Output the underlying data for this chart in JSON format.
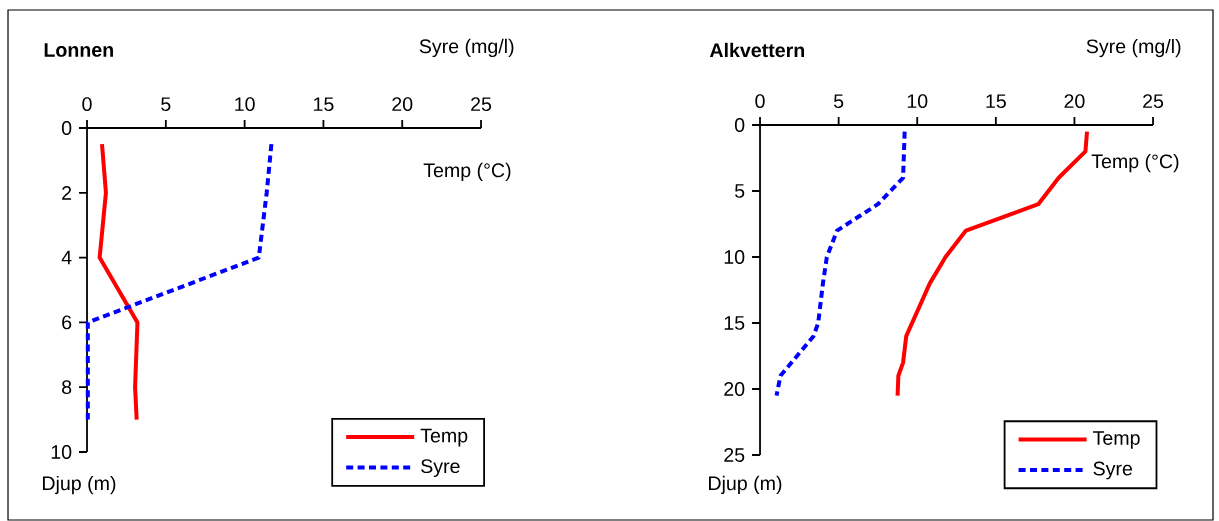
{
  "chart_data": [
    {
      "type": "line",
      "title": "Lonnen",
      "xlabel": "Syre (mg/l)",
      "ylabel": "Djup (m)",
      "annotations": [
        "Temp (°C)"
      ],
      "xlim": [
        0,
        25
      ],
      "xticks": [
        0,
        5,
        10,
        15,
        20,
        25
      ],
      "ylim": [
        10,
        0
      ],
      "yticks": [
        0,
        2,
        4,
        6,
        8,
        10
      ],
      "legend": "bottom right",
      "grid": false,
      "series": [
        {
          "name": "Temp",
          "color": "#ff0000",
          "line_style": "solid",
          "x": [
            0.95,
            1.2,
            0.8,
            3.2,
            3.05,
            3.15
          ],
          "values": [
            0.5,
            2,
            4,
            6,
            8,
            9
          ]
        },
        {
          "name": "Syre",
          "color": "#0000ff",
          "line_style": "dashed",
          "x": [
            11.7,
            11.4,
            10.9,
            0.05,
            0.05,
            0.05
          ],
          "values": [
            0.5,
            2,
            4,
            6,
            8,
            9
          ]
        }
      ]
    },
    {
      "type": "line",
      "title": "Alkvettern",
      "xlabel": "Syre (mg/l)",
      "ylabel": "Djup (m)",
      "annotations": [
        "Temp (°C)"
      ],
      "xlim": [
        0,
        25
      ],
      "xticks": [
        0,
        5,
        10,
        15,
        20,
        25
      ],
      "ylim": [
        25,
        0
      ],
      "yticks": [
        0,
        5,
        10,
        15,
        20,
        25
      ],
      "legend": "bottom right",
      "grid": false,
      "series": [
        {
          "name": "Temp",
          "color": "#ff0000",
          "line_style": "solid",
          "x": [
            20.8,
            20.7,
            19.0,
            17.7,
            13.1,
            11.8,
            10.8,
            9.3,
            9.1,
            8.8,
            8.75
          ],
          "values": [
            0.5,
            2,
            4,
            6,
            8,
            10,
            12,
            16,
            18,
            19,
            20.5
          ]
        },
        {
          "name": "Syre",
          "color": "#0000ff",
          "line_style": "dashed",
          "x": [
            9.2,
            9.1,
            7.5,
            4.9,
            4.25,
            4.0,
            3.7,
            3.4,
            1.3,
            1.05
          ],
          "values": [
            0.5,
            4,
            6,
            8,
            10,
            12,
            15,
            16,
            19,
            20.5
          ]
        }
      ]
    }
  ]
}
